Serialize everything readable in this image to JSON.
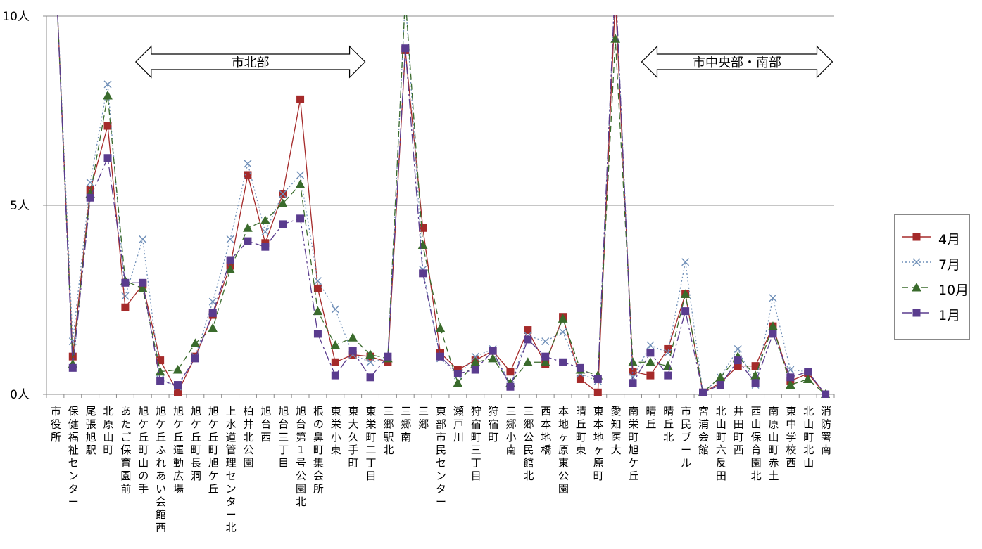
{
  "chart_data": {
    "type": "line",
    "y_ticks": [
      {
        "value": 0,
        "label": "0人"
      },
      {
        "value": 5,
        "label": "5人"
      },
      {
        "value": 10,
        "label": "10人"
      }
    ],
    "ylim": [
      0,
      10
    ],
    "grid": true,
    "legend_position": "right",
    "categories": [
      "市役所",
      "保健福祉センター",
      "尾張旭駅",
      "北原山町",
      "あたご保育園前",
      "旭ケ丘町山の手",
      "旭ケ丘ふれあい会館西",
      "旭ケ丘運動広場",
      "旭ケ丘町長洞",
      "旭ケ丘町旭ケ丘",
      "上水道管理センター北",
      "柏井北公園",
      "旭台西",
      "旭台三丁目",
      "旭台第1号公園北",
      "根の鼻町集会所",
      "東栄小東",
      "東大久手町",
      "東栄町二丁目",
      "三郷駅北",
      "三郷南",
      "三郷",
      "東部市民センター",
      "瀬戸川",
      "狩宿町三丁目",
      "狩宿町",
      "三郷小南",
      "三郷公民館北",
      "西本地橋",
      "本地ヶ原東公園",
      "晴丘町東",
      "東本地ヶ原町",
      "愛知医大",
      "南栄町旭ケ丘",
      "晴丘",
      "晴丘北",
      "市民プール",
      "宮浦会館",
      "北山町六反田",
      "井田町西",
      "西山保育園北",
      "南原山町赤土",
      "東中学校西",
      "北山町北山",
      "消防署南"
    ],
    "series": [
      {
        "name": "4月",
        "color": "#a52a2a",
        "marker": "square",
        "dash": "",
        "values": [
          11.5,
          1.0,
          5.4,
          7.1,
          2.3,
          2.9,
          0.9,
          0.05,
          1.0,
          2.1,
          3.4,
          5.8,
          4.0,
          5.3,
          7.8,
          2.8,
          0.85,
          1.05,
          1.0,
          0.85,
          9.1,
          4.4,
          1.1,
          0.65,
          0.9,
          1.15,
          0.6,
          1.7,
          0.8,
          2.05,
          0.4,
          0.05,
          10.5,
          0.6,
          0.5,
          1.2,
          2.65,
          0.05,
          0.3,
          0.75,
          0.75,
          1.8,
          0.35,
          0.55,
          0.0
        ]
      },
      {
        "name": "7月",
        "color": "#6f8fb8",
        "marker": "x",
        "dash": "2,3",
        "values": [
          11.5,
          1.4,
          5.6,
          8.2,
          2.6,
          4.1,
          0.4,
          0.2,
          1.0,
          2.45,
          4.1,
          6.1,
          4.3,
          5.3,
          5.8,
          3.0,
          2.25,
          1.05,
          0.85,
          0.95,
          10.5,
          3.3,
          0.95,
          0.5,
          1.0,
          1.2,
          0.25,
          1.55,
          1.4,
          1.65,
          0.55,
          0.35,
          11.0,
          0.45,
          1.3,
          1.1,
          3.5,
          0.05,
          0.45,
          1.2,
          0.25,
          2.55,
          0.65,
          0.6,
          0.0
        ]
      },
      {
        "name": "10月",
        "color": "#3a6b2c",
        "marker": "triangle",
        "dash": "9,5",
        "values": [
          11.5,
          0.8,
          5.3,
          7.9,
          3.0,
          2.8,
          0.6,
          0.65,
          1.35,
          1.75,
          3.3,
          4.4,
          4.6,
          5.05,
          5.55,
          2.2,
          1.3,
          1.5,
          1.05,
          0.95,
          10.5,
          3.95,
          1.75,
          0.3,
          0.85,
          0.95,
          0.3,
          0.85,
          0.85,
          2.0,
          0.65,
          0.5,
          9.4,
          0.85,
          0.85,
          0.75,
          2.65,
          0.05,
          0.45,
          1.0,
          0.5,
          1.8,
          0.25,
          0.4,
          0.0
        ]
      },
      {
        "name": "1月",
        "color": "#5a3c8e",
        "marker": "square",
        "dash": "14,4,3,4",
        "values": [
          11.5,
          0.7,
          5.2,
          6.25,
          2.95,
          2.95,
          0.35,
          0.25,
          0.95,
          2.15,
          3.55,
          4.05,
          3.9,
          4.5,
          4.65,
          1.6,
          0.5,
          1.15,
          0.45,
          1.0,
          9.15,
          3.2,
          1.0,
          0.55,
          0.65,
          1.15,
          0.2,
          1.45,
          1.0,
          0.85,
          0.7,
          0.4,
          11.0,
          0.3,
          1.1,
          0.5,
          2.2,
          0.05,
          0.25,
          0.9,
          0.3,
          1.6,
          0.45,
          0.6,
          0.0
        ]
      }
    ],
    "annotations": [
      {
        "text": "市北部",
        "from_index": 4.6,
        "to_index": 17.7
      },
      {
        "text": "市中央部・南部",
        "from_index": 33.5,
        "to_index": 44.4
      }
    ]
  }
}
